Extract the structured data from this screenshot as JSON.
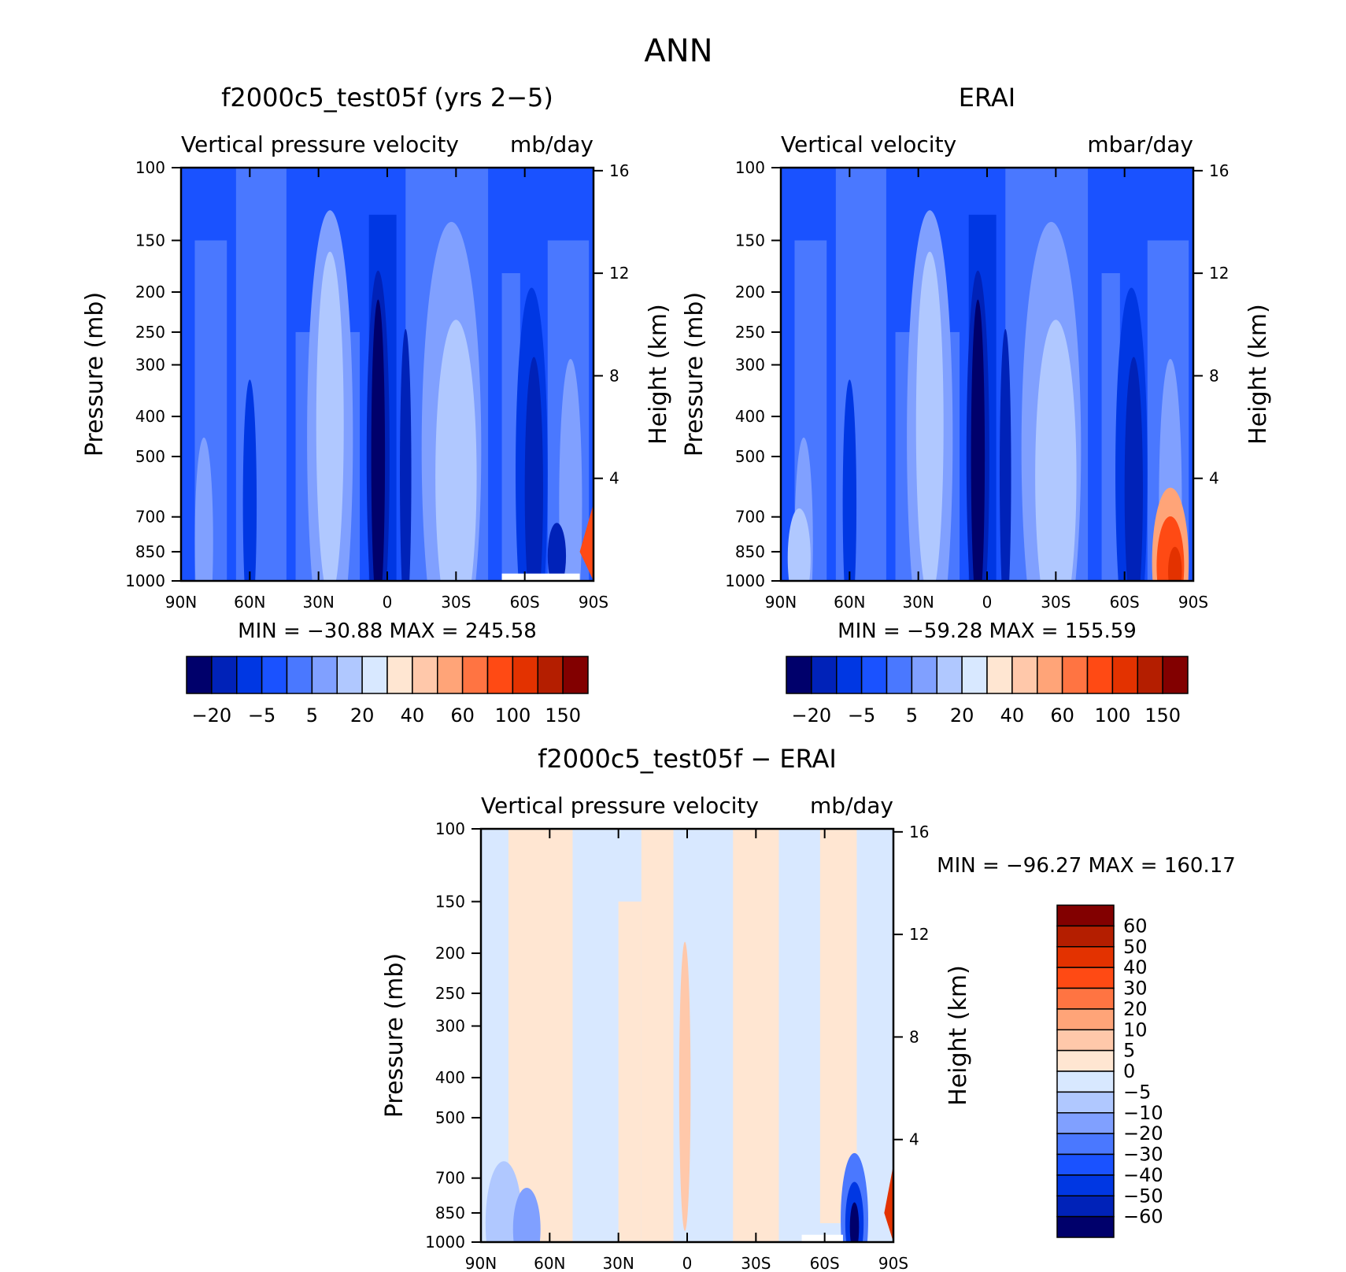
{
  "page": {
    "title": "ANN"
  },
  "colors": {
    "main": [
      "#00006b",
      "#0022b8",
      "#0037e3",
      "#1a52ff",
      "#4a78ff",
      "#80a0ff",
      "#b0c8ff",
      "#d8e8ff",
      "#ffe6d2",
      "#ffc8aa",
      "#ffa478",
      "#ff7442",
      "#ff4a14",
      "#e33200",
      "#b41e00",
      "#820000"
    ],
    "diff": [
      "#00006b",
      "#0022b8",
      "#0037e3",
      "#1a52ff",
      "#4a78ff",
      "#80a0ff",
      "#b0c8ff",
      "#d8e8ff",
      "#ffe6d2",
      "#ffc8aa",
      "#ffa478",
      "#ff7442",
      "#ff4a14",
      "#e33200",
      "#b41e00",
      "#820000"
    ]
  },
  "chart_data": [
    {
      "type": "heatmap",
      "title": "f2000c5_test05f (yrs 2−5)",
      "subtitle_left": "Vertical pressure velocity",
      "subtitle_right": "mb/day",
      "ylabel": "Pressure (mb)",
      "ylabel_right": "Height (km)",
      "stats": "MIN = −30.88   MAX = 245.58",
      "x_ticks": [
        "90N",
        "60N",
        "30N",
        "0",
        "30S",
        "60S",
        "90S"
      ],
      "y_ticks": [
        "100",
        "150",
        "200",
        "250",
        "300",
        "400",
        "500",
        "700",
        "850",
        "1000"
      ],
      "y_ticks_right": [
        "16",
        "12",
        "8",
        "4"
      ],
      "colorbar_labels": [
        "−20",
        "−5",
        "5",
        "20",
        "40",
        "60",
        "100",
        "150"
      ],
      "x": [
        -90,
        -80,
        -70,
        -60,
        -50,
        -40,
        -30,
        -20,
        -10,
        -5,
        0,
        5,
        10,
        20,
        30,
        40,
        50,
        60,
        70,
        80,
        90
      ],
      "y": [
        100,
        150,
        200,
        250,
        300,
        400,
        500,
        700,
        850,
        1000
      ]
    },
    {
      "type": "heatmap",
      "title": "ERAI",
      "subtitle_left": "Vertical velocity",
      "subtitle_right": "mbar/day",
      "ylabel": "Pressure (mb)",
      "ylabel_right": "Height (km)",
      "stats": "MIN = −59.28   MAX = 155.59",
      "x_ticks": [
        "90N",
        "60N",
        "30N",
        "0",
        "30S",
        "60S",
        "90S"
      ],
      "y_ticks": [
        "100",
        "150",
        "200",
        "250",
        "300",
        "400",
        "500",
        "700",
        "850",
        "1000"
      ],
      "y_ticks_right": [
        "16",
        "12",
        "8",
        "4"
      ],
      "colorbar_labels": [
        "−20",
        "−5",
        "5",
        "20",
        "40",
        "60",
        "100",
        "150"
      ]
    },
    {
      "type": "heatmap",
      "title": "f2000c5_test05f − ERAI",
      "subtitle_left": "Vertical pressure velocity",
      "subtitle_right": "mb/day",
      "ylabel": "Pressure (mb)",
      "ylabel_right": "Height (km)",
      "stats": "MIN = −96.27   MAX = 160.17",
      "x_ticks": [
        "90N",
        "60N",
        "30N",
        "0",
        "30S",
        "60S",
        "90S"
      ],
      "y_ticks": [
        "100",
        "150",
        "200",
        "250",
        "300",
        "400",
        "500",
        "700",
        "850",
        "1000"
      ],
      "y_ticks_right": [
        "16",
        "12",
        "8",
        "4"
      ],
      "colorbar_labels": [
        "60",
        "50",
        "40",
        "30",
        "20",
        "10",
        "5",
        "0",
        "−5",
        "−10",
        "−20",
        "−30",
        "−40",
        "−50",
        "−60"
      ]
    }
  ]
}
